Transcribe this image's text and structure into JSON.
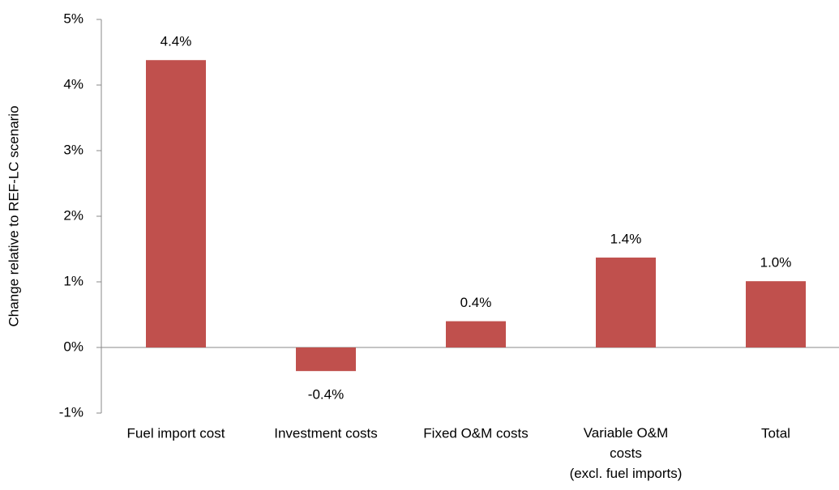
{
  "chart_data": {
    "type": "bar",
    "y_label": "Change relative to REF-LC scenario",
    "categories": [
      "Fuel import cost",
      "Investment costs",
      "Fixed O&M costs",
      "Variable O&M\ncosts\n(excl. fuel imports)",
      "Total"
    ],
    "values": [
      4.38,
      -0.36,
      0.4,
      1.37,
      1.01
    ],
    "value_labels": [
      "4.4%",
      "-0.4%",
      "0.4%",
      "1.4%",
      "1.0%"
    ],
    "color": "#c0504d",
    "ylim": [
      -1,
      5
    ],
    "yticks": [
      {
        "value": -1,
        "label": "-1%"
      },
      {
        "value": 0,
        "label": "0%"
      },
      {
        "value": 1,
        "label": "1%"
      },
      {
        "value": 2,
        "label": "2%"
      },
      {
        "value": 3,
        "label": "3%"
      },
      {
        "value": 4,
        "label": "4%"
      },
      {
        "value": 5,
        "label": "5%"
      }
    ],
    "grid": false
  }
}
